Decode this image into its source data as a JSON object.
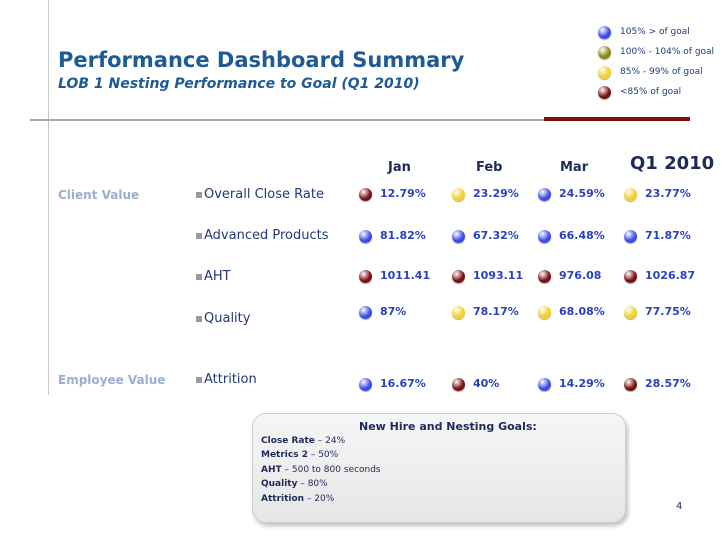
{
  "title": "Performance Dashboard Summary",
  "subtitle": "LOB 1 Nesting Performance to Goal (Q1 2010)",
  "colors": {
    "blue": "#3b4be8",
    "olive": "#8a8a14",
    "yellow": "#f2cf2a",
    "darkred": "#7a0f12"
  },
  "legend": [
    {
      "label": "105% > of goal",
      "color": "blue"
    },
    {
      "label": "100% - 104% of goal",
      "color": "olive"
    },
    {
      "label": "85% - 99% of goal",
      "color": "yellow"
    },
    {
      "label": "<85% of goal",
      "color": "darkred"
    }
  ],
  "columns": [
    "Jan",
    "Feb",
    "Mar",
    "Q1 2010"
  ],
  "groups": {
    "client": "Client Value",
    "employee": "Employee Value"
  },
  "rows": [
    {
      "metric": "Overall Close Rate",
      "cells": [
        {
          "value": "12.79%",
          "status": "darkred"
        },
        {
          "value": "23.29%",
          "status": "yellow"
        },
        {
          "value": "24.59%",
          "status": "blue"
        },
        {
          "value": "23.77%",
          "status": "yellow"
        }
      ]
    },
    {
      "metric": "Advanced Products",
      "cells": [
        {
          "value": "81.82%",
          "status": "blue"
        },
        {
          "value": "67.32%",
          "status": "blue"
        },
        {
          "value": "66.48%",
          "status": "blue"
        },
        {
          "value": "71.87%",
          "status": "blue"
        }
      ]
    },
    {
      "metric": "AHT",
      "cells": [
        {
          "value": "1011.41",
          "status": "darkred"
        },
        {
          "value": "1093.11",
          "status": "darkred"
        },
        {
          "value": "976.08",
          "status": "darkred"
        },
        {
          "value": "1026.87",
          "status": "darkred"
        }
      ]
    },
    {
      "metric": "Quality",
      "cells": [
        {
          "value": "87%",
          "status": "blue"
        },
        {
          "value": "78.17%",
          "status": "yellow"
        },
        {
          "value": "68.08%",
          "status": "yellow"
        },
        {
          "value": "77.75%",
          "status": "yellow"
        }
      ]
    },
    {
      "metric": "Attrition",
      "cells": [
        {
          "value": "16.67%",
          "status": "blue"
        },
        {
          "value": "40%",
          "status": "darkred"
        },
        {
          "value": "14.29%",
          "status": "blue"
        },
        {
          "value": "28.57%",
          "status": "darkred"
        }
      ]
    }
  ],
  "goals": {
    "title": "New Hire and Nesting Goals:",
    "items": [
      {
        "label": "Close Rate",
        "value": " – 24%"
      },
      {
        "label": "Metrics 2",
        "value": " – 50%"
      },
      {
        "label": "AHT",
        "value": " – 500 to 800 seconds"
      },
      {
        "label": "Quality",
        "value": " – 80%"
      },
      {
        "label": "Attrition",
        "value": " – 20%"
      }
    ]
  },
  "page_number": "4"
}
